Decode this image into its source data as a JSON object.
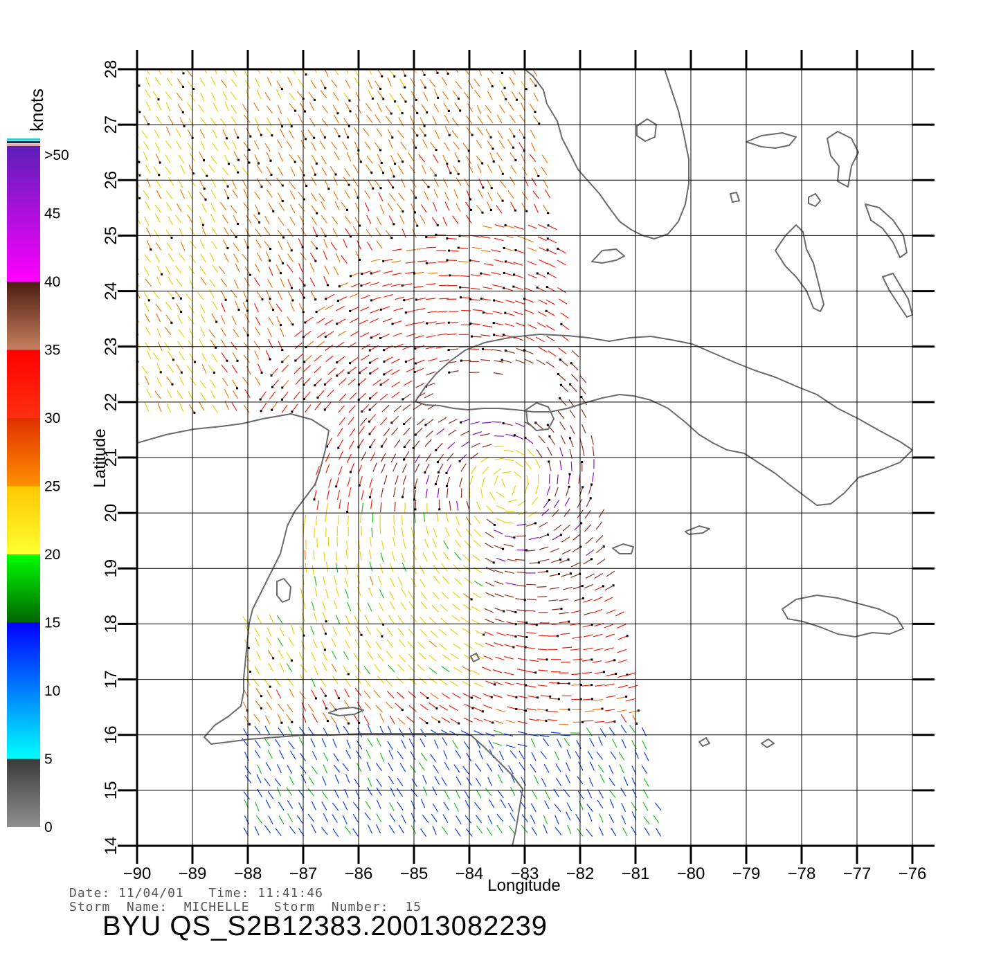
{
  "legend": {
    "units_label": "knots",
    "ticks": [
      ">50",
      "45",
      "40",
      "35",
      "30",
      "25",
      "20",
      "15",
      "10",
      "5",
      "0"
    ],
    "bands": [
      {
        "from": 0,
        "to": 5,
        "color_top": "#3a3a3a",
        "color_bottom": "#909090"
      },
      {
        "from": 5,
        "to": 15,
        "color_top": "#0000ff",
        "color_bottom": "#00ffff"
      },
      {
        "from": 15,
        "to": 20,
        "color_top": "#00ff00",
        "color_bottom": "#006400"
      },
      {
        "from": 20,
        "to": 25,
        "color_top": "#ffc800",
        "color_bottom": "#ffff30"
      },
      {
        "from": 25,
        "to": 30,
        "color_top": "#e03000",
        "color_bottom": "#ff9000"
      },
      {
        "from": 30,
        "to": 35,
        "color_top": "#ff0000",
        "color_bottom": "#ff3010"
      },
      {
        "from": 35,
        "to": 40,
        "color_top": "#4a1c10",
        "color_bottom": "#c88060"
      },
      {
        "from": 40,
        "to": 50,
        "color_top": "#5a20b8",
        "color_bottom": "#ff00ff"
      }
    ]
  },
  "axes": {
    "x_label": "Longitude",
    "y_label": "Latitude",
    "x_ticks": [
      "−90",
      "−89",
      "−88",
      "−87",
      "−86",
      "−85",
      "−84",
      "−83",
      "−82",
      "−81",
      "−80",
      "−79",
      "−78",
      "−77",
      "−76"
    ],
    "y_ticks": [
      "14",
      "15",
      "16",
      "17",
      "18",
      "19",
      "20",
      "21",
      "22",
      "23",
      "24",
      "25",
      "26",
      "27",
      "28"
    ],
    "lon_range": [
      -90,
      -76
    ],
    "lat_range": [
      14,
      28
    ]
  },
  "info": {
    "date_line": "Date: 11/04/01   Time: 11:41:46",
    "storm_line": "Storm  Name:  MICHELLE   Storm  Number:  15",
    "file_title": "BYU  QS_S2B12383.20013082239"
  },
  "colors": {
    "coast": "#6a6a6a",
    "grid": "#000000",
    "rain_flag": "#000000"
  }
}
